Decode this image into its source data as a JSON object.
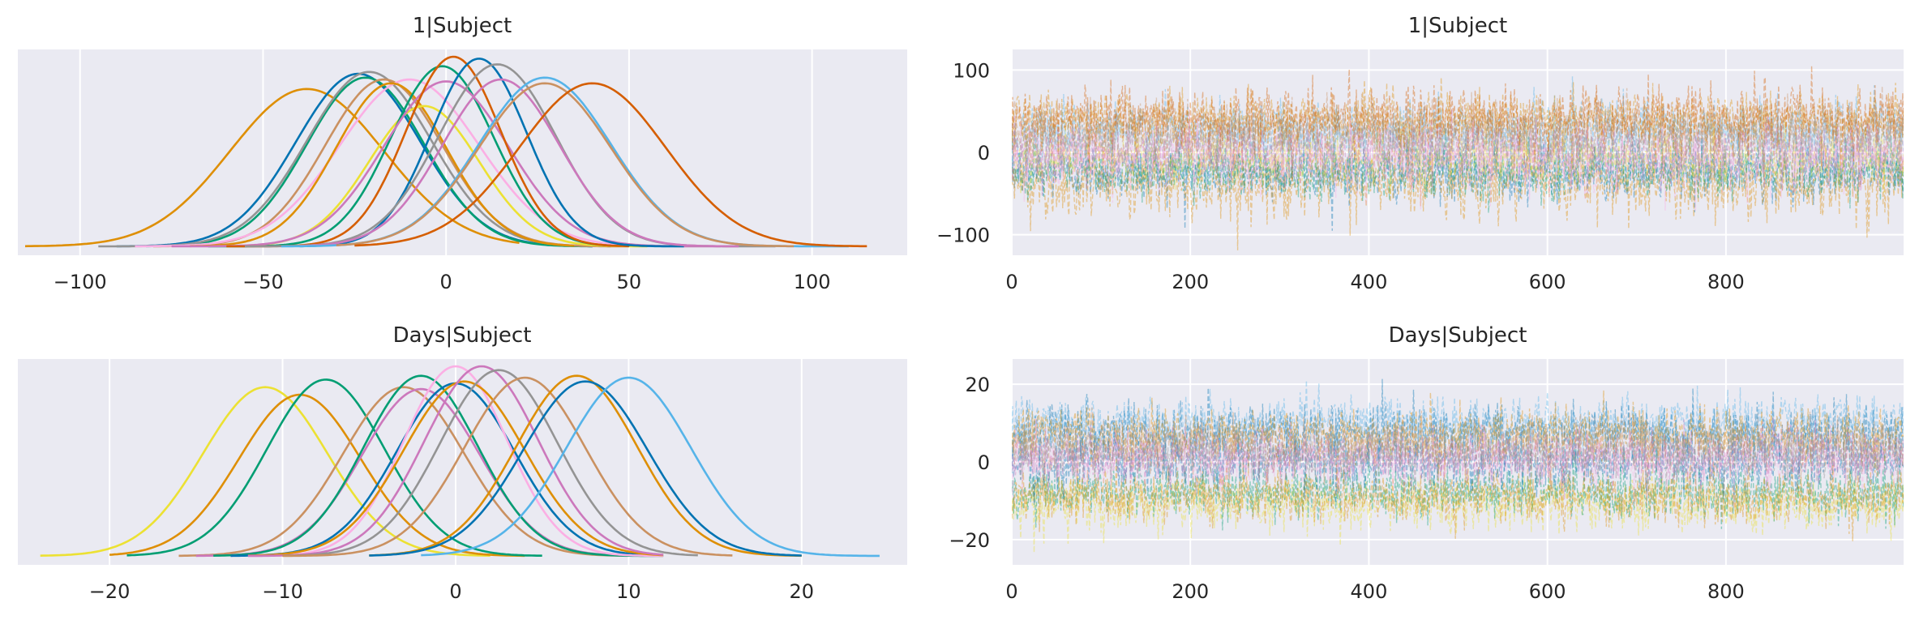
{
  "figure": {
    "background": "#ffffff",
    "panel_bg": "#EAEAF2",
    "grid_color": "#ffffff"
  },
  "palette": [
    "#0173B2",
    "#DE8F05",
    "#029E73",
    "#D55E00",
    "#CC78BC",
    "#CA9161",
    "#FBAFE4",
    "#949494",
    "#ECE133",
    "#56B4E9"
  ],
  "chart_data": [
    {
      "type": "line",
      "kind": "density",
      "title": "1|Subject",
      "xlabel": "",
      "ylabel": "",
      "xlim": [
        -117,
        126
      ],
      "xticks": [
        -100,
        -50,
        0,
        50,
        100
      ],
      "xtick_labels": [
        "−100",
        "−50",
        "0",
        "50",
        "100"
      ],
      "grid": true,
      "series": [
        {
          "color": "#DE8F05",
          "mean": -38,
          "sd": 21,
          "min": -115,
          "max": 20,
          "peak": 0.83
        },
        {
          "color": "#0173B2",
          "mean": -24,
          "sd": 17,
          "min": -90,
          "max": 40,
          "peak": 0.91
        },
        {
          "color": "#029E73",
          "mean": -22,
          "sd": 16,
          "min": -82,
          "max": 40,
          "peak": 0.89
        },
        {
          "color": "#949494",
          "mean": -21,
          "sd": 17,
          "min": -95,
          "max": 45,
          "peak": 0.92
        },
        {
          "color": "#CA9161",
          "mean": -17,
          "sd": 16,
          "min": -80,
          "max": 50,
          "peak": 0.88
        },
        {
          "color": "#FBAFE4",
          "mean": -10,
          "sd": 19,
          "min": -85,
          "max": 60,
          "peak": 0.88
        },
        {
          "color": "#DE8F05",
          "mean": -15,
          "sd": 15,
          "min": -70,
          "max": 35,
          "peak": 0.86
        },
        {
          "color": "#ECE133",
          "mean": -6,
          "sd": 15,
          "min": -55,
          "max": 55,
          "peak": 0.74
        },
        {
          "color": "#029E73",
          "mean": -1,
          "sd": 14,
          "min": -65,
          "max": 45,
          "peak": 0.95
        },
        {
          "color": "#CC78BC",
          "mean": 0,
          "sd": 17,
          "min": -75,
          "max": 75,
          "peak": 0.87
        },
        {
          "color": "#D55E00",
          "mean": 2,
          "sd": 13,
          "min": -60,
          "max": 50,
          "peak": 1.0
        },
        {
          "color": "#0173B2",
          "mean": 9,
          "sd": 13,
          "min": -40,
          "max": 65,
          "peak": 0.99
        },
        {
          "color": "#949494",
          "mean": 14,
          "sd": 16,
          "min": -55,
          "max": 90,
          "peak": 0.96
        },
        {
          "color": "#CC78BC",
          "mean": 15,
          "sd": 16,
          "min": -40,
          "max": 80,
          "peak": 0.88
        },
        {
          "color": "#56B4E9",
          "mean": 27,
          "sd": 18,
          "min": -45,
          "max": 110,
          "peak": 0.89
        },
        {
          "color": "#CA9161",
          "mean": 27,
          "sd": 18,
          "min": -30,
          "max": 95,
          "peak": 0.86
        },
        {
          "color": "#D55E00",
          "mean": 40,
          "sd": 20,
          "min": -25,
          "max": 115,
          "peak": 0.86
        }
      ]
    },
    {
      "type": "line",
      "kind": "trace",
      "title": "1|Subject",
      "xlabel": "",
      "ylabel": "",
      "xlim": [
        0,
        999
      ],
      "ylim": [
        -125,
        125
      ],
      "xticks": [
        0,
        200,
        400,
        600,
        800
      ],
      "xtick_labels": [
        "0",
        "200",
        "400",
        "600",
        "800"
      ],
      "yticks": [
        -100,
        0,
        100
      ],
      "ytick_labels": [
        "−100",
        "0",
        "100"
      ],
      "grid": true,
      "draws": 1000,
      "series": [
        {
          "color": "#0173B2",
          "mean": -24,
          "sd": 17
        },
        {
          "color": "#DE8F05",
          "mean": -38,
          "sd": 21
        },
        {
          "color": "#029E73",
          "mean": -22,
          "sd": 16
        },
        {
          "color": "#ECE133",
          "mean": -6,
          "sd": 15
        },
        {
          "color": "#56B4E9",
          "mean": 27,
          "sd": 18
        },
        {
          "color": "#CA9161",
          "mean": 27,
          "sd": 18
        },
        {
          "color": "#DE8F05",
          "mean": 40,
          "sd": 17
        },
        {
          "color": "#D55E00",
          "mean": 40,
          "sd": 20
        },
        {
          "color": "#CC78BC",
          "mean": 0,
          "sd": 17
        },
        {
          "color": "#FBAFE4",
          "mean": -10,
          "sd": 19
        },
        {
          "color": "#949494",
          "mean": 14,
          "sd": 16
        }
      ]
    },
    {
      "type": "line",
      "kind": "density",
      "title": "Days|Subject",
      "xlabel": "",
      "ylabel": "",
      "xlim": [
        -25.3,
        26.1
      ],
      "xticks": [
        -20,
        -10,
        0,
        10,
        20
      ],
      "xtick_labels": [
        "−20",
        "−10",
        "0",
        "10",
        "20"
      ],
      "grid": true,
      "series": [
        {
          "color": "#ECE133",
          "mean": -11,
          "sd": 3.6,
          "min": -24,
          "max": 2,
          "peak": 0.89
        },
        {
          "color": "#DE8F05",
          "mean": -9,
          "sd": 3.5,
          "min": -20,
          "max": 4,
          "peak": 0.85
        },
        {
          "color": "#029E73",
          "mean": -7.5,
          "sd": 3.4,
          "min": -19,
          "max": 5,
          "peak": 0.93
        },
        {
          "color": "#CA9161",
          "mean": -3,
          "sd": 3.5,
          "min": -16,
          "max": 10,
          "peak": 0.89
        },
        {
          "color": "#CC78BC",
          "mean": -2,
          "sd": 3.4,
          "min": -15,
          "max": 10,
          "peak": 0.88
        },
        {
          "color": "#029E73",
          "mean": -2,
          "sd": 3.3,
          "min": -14,
          "max": 12,
          "peak": 0.95
        },
        {
          "color": "#0173B2",
          "mean": 0,
          "sd": 3.4,
          "min": -13,
          "max": 12,
          "peak": 0.91
        },
        {
          "color": "#FBAFE4",
          "mean": 0,
          "sd": 3.0,
          "min": -12,
          "max": 12,
          "peak": 1.0
        },
        {
          "color": "#DE8F05",
          "mean": 0.5,
          "sd": 3.5,
          "min": -12,
          "max": 12,
          "peak": 0.92
        },
        {
          "color": "#CC78BC",
          "mean": 1.5,
          "sd": 3.3,
          "min": -12,
          "max": 12,
          "peak": 1.0
        },
        {
          "color": "#949494",
          "mean": 2.5,
          "sd": 3.4,
          "min": -10,
          "max": 14,
          "peak": 0.98
        },
        {
          "color": "#CA9161",
          "mean": 4,
          "sd": 3.5,
          "min": -10,
          "max": 16,
          "peak": 0.94
        },
        {
          "color": "#DE8F05",
          "mean": 7,
          "sd": 3.5,
          "min": -5,
          "max": 20,
          "peak": 0.95
        },
        {
          "color": "#0173B2",
          "mean": 7.5,
          "sd": 3.6,
          "min": -5,
          "max": 20,
          "peak": 0.92
        },
        {
          "color": "#56B4E9",
          "mean": 10,
          "sd": 3.6,
          "min": -2,
          "max": 24.5,
          "peak": 0.94
        }
      ]
    },
    {
      "type": "line",
      "kind": "trace",
      "title": "Days|Subject",
      "xlabel": "",
      "ylabel": "",
      "xlim": [
        0,
        999
      ],
      "ylim": [
        -26.5,
        26.5
      ],
      "xticks": [
        0,
        200,
        400,
        600,
        800
      ],
      "xtick_labels": [
        "0",
        "200",
        "400",
        "600",
        "800"
      ],
      "yticks": [
        -20,
        0,
        20
      ],
      "ytick_labels": [
        "−20",
        "0",
        "20"
      ],
      "grid": true,
      "draws": 1000,
      "series": [
        {
          "color": "#ECE133",
          "mean": -11,
          "sd": 3.6
        },
        {
          "color": "#029E73",
          "mean": -7.5,
          "sd": 3.4
        },
        {
          "color": "#DE8F05",
          "mean": -9,
          "sd": 3.5
        },
        {
          "color": "#0173B2",
          "mean": 0,
          "sd": 3.4
        },
        {
          "color": "#56B4E9",
          "mean": 10,
          "sd": 3.6
        },
        {
          "color": "#0173B2",
          "mean": 7.5,
          "sd": 3.6
        },
        {
          "color": "#DE8F05",
          "mean": 7,
          "sd": 3.5
        },
        {
          "color": "#CA9161",
          "mean": 4,
          "sd": 3.5
        },
        {
          "color": "#FBAFE4",
          "mean": 0,
          "sd": 3.0
        },
        {
          "color": "#CC78BC",
          "mean": 1.5,
          "sd": 3.3
        },
        {
          "color": "#949494",
          "mean": 2.5,
          "sd": 3.4
        }
      ]
    }
  ]
}
